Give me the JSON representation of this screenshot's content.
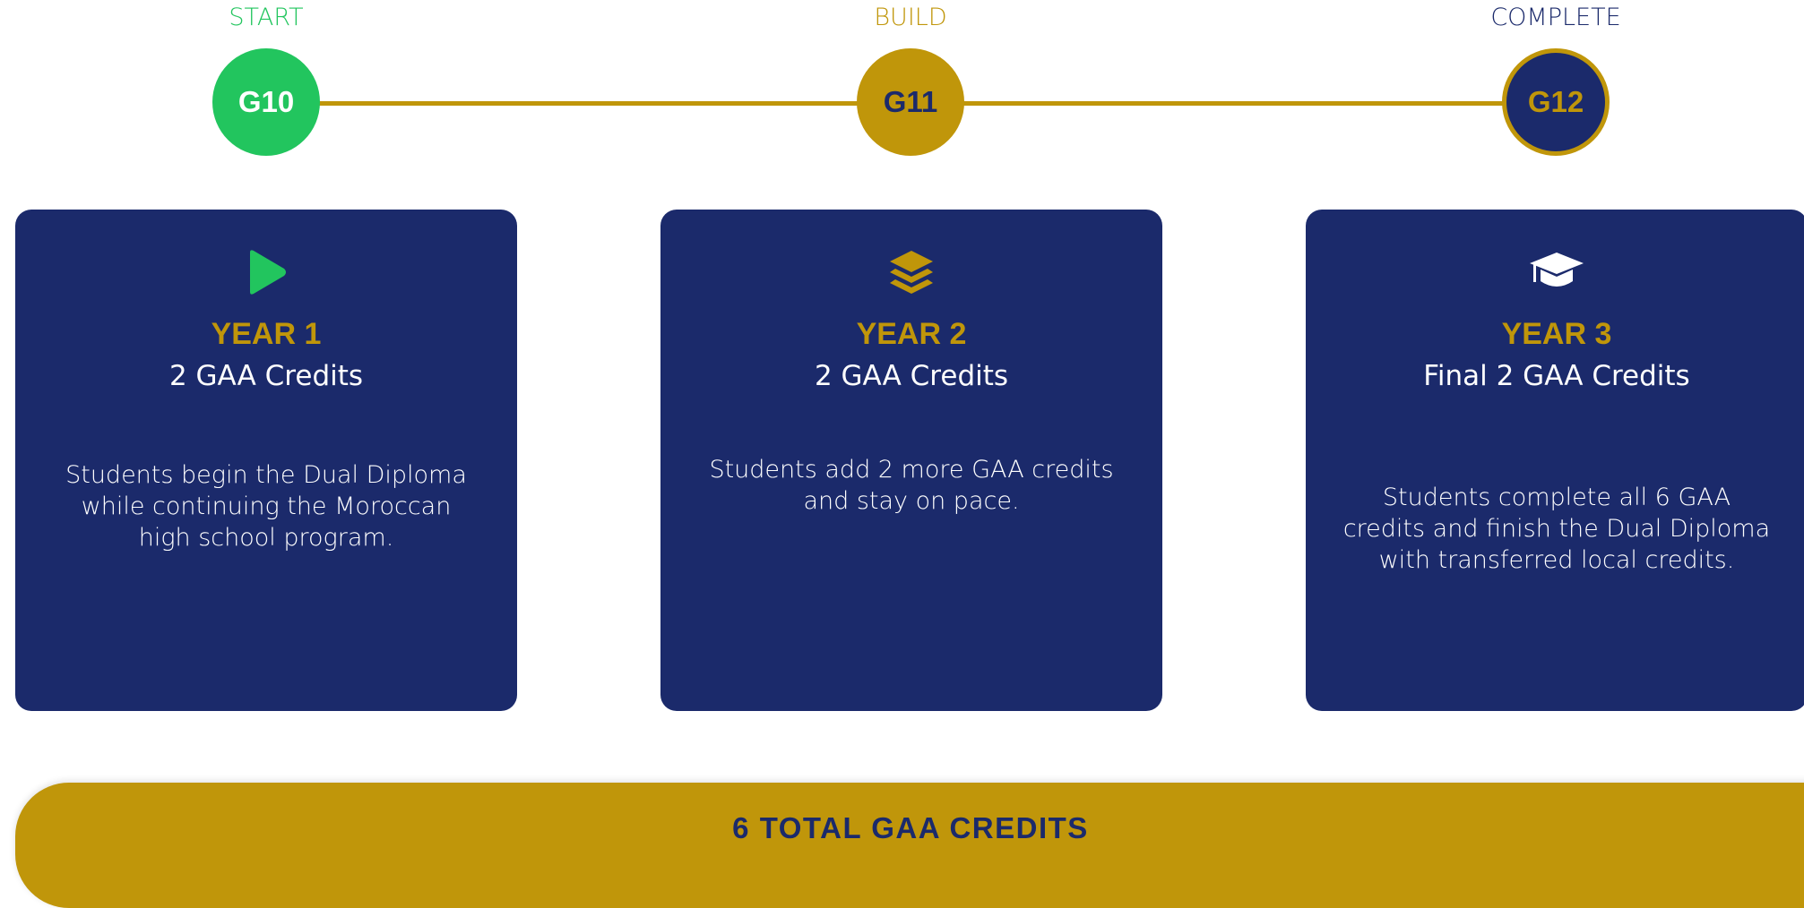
{
  "stages": [
    {
      "label": "START",
      "grade": "G10",
      "year": "YEAR 1",
      "credits": "2 GAA Credits",
      "description": "Students begin the Dual Diploma while continuing the Moroccan high school program."
    },
    {
      "label": "BUILD",
      "grade": "G11",
      "year": "YEAR 2",
      "credits": "2 GAA Credits",
      "description": "Students add 2 more GAA credits and stay on pace."
    },
    {
      "label": "COMPLETE",
      "grade": "G12",
      "year": "YEAR 3",
      "credits": "Final 2 GAA Credits",
      "description": "Students complete all 6 GAA credits and finish the Dual Diploma with transferred local credits."
    }
  ],
  "total": "6 TOTAL GAA CREDITS"
}
